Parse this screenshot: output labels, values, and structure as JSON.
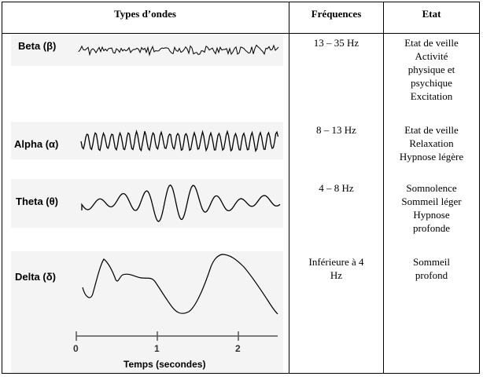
{
  "table": {
    "headers": {
      "waves": "Types d’ondes",
      "freq": "Fréquences",
      "state": "Etat"
    },
    "rows": [
      {
        "wave_label": "Beta (β)",
        "freq": "13 – 35 Hz",
        "state": [
          "Etat de veille",
          "Activité",
          "physique et",
          "psychique",
          "Excitation"
        ]
      },
      {
        "wave_label": "Alpha (α)",
        "freq": "8 – 13 Hz",
        "state": [
          "Etat de veille",
          "Relaxation",
          "Hypnose légère"
        ]
      },
      {
        "wave_label": "Theta (θ)",
        "freq": "4 – 8 Hz",
        "state": [
          "Somnolence",
          "Sommeil léger",
          "Hypnose",
          "profonde"
        ]
      },
      {
        "wave_label": "Delta (δ)",
        "freq": [
          "Inférieure à 4",
          "Hz"
        ],
        "state": [
          "Sommeil",
          "profond"
        ]
      }
    ]
  },
  "time_axis": {
    "label": "Temps (secondes)",
    "ticks": [
      "0",
      "1",
      "2"
    ]
  }
}
